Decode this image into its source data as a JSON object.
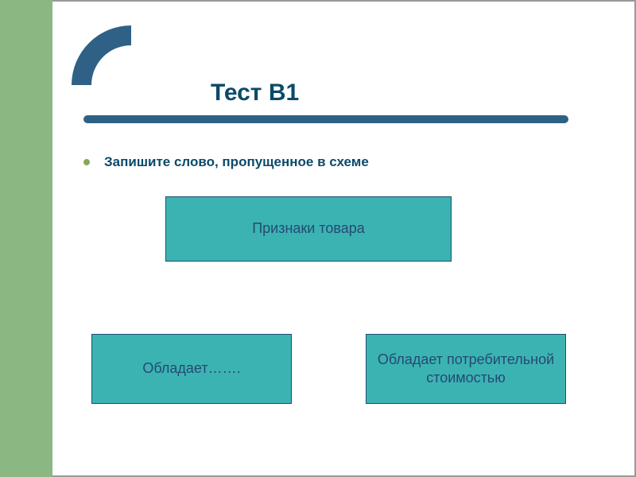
{
  "title": {
    "text": "Тест В1",
    "fontsize": 30,
    "color": "#0b4a6a"
  },
  "bullet": {
    "text": "Запишите слово, пропущенное в схеме",
    "fontsize": 17,
    "color": "#0b4a6a",
    "dot_color": "#86a65a"
  },
  "layout": {
    "background": "#ffffff",
    "green_block_color": "#8bb783",
    "arc_color": "#2f6186",
    "underline_color": "#2f6186",
    "underline_width": 610
  },
  "boxes": {
    "fill": "#3cb3b3",
    "border": "#244a71",
    "text_color": "#244a71",
    "fontsize": 18,
    "top": {
      "label": "Признаки товара"
    },
    "left": {
      "label": "Обладает……."
    },
    "right": {
      "label": "Обладает потребительной стоимостью"
    }
  }
}
